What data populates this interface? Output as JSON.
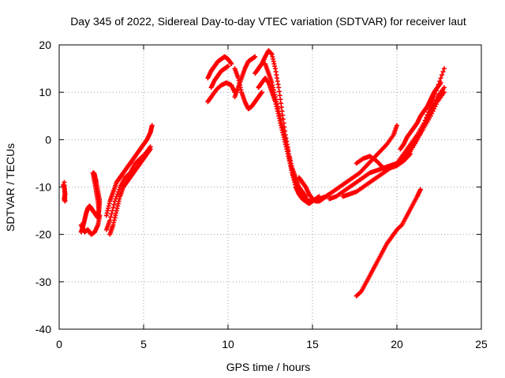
{
  "chart_data": {
    "type": "scatter",
    "title": "Day 345 of 2022, Sidereal Day-to-day VTEC variation (SDTVAR) for receiver laut",
    "xlabel": "GPS time / hours",
    "ylabel": "SDTVAR / TECUs",
    "xlim": [
      0,
      25
    ],
    "ylim": [
      -40,
      20
    ],
    "xticks": [
      0,
      5,
      10,
      15,
      20,
      25
    ],
    "yticks": [
      -40,
      -30,
      -20,
      -10,
      0,
      10,
      20
    ],
    "grid": true,
    "marker": "+",
    "color": "#ff0000",
    "series": [
      {
        "x": [
          0.25,
          0.3,
          0.35,
          0.3,
          0.35,
          0.3
        ],
        "y": [
          -9.5,
          -10,
          -11.5,
          -12.5,
          -13,
          -9
        ]
      },
      {
        "x": [
          1.3,
          1.4,
          1.5,
          1.6,
          1.7,
          1.8,
          1.9,
          2.0,
          2.1,
          2.2,
          2.3,
          2.35,
          2.4,
          2.3,
          2.2,
          2.1,
          2.05
        ],
        "y": [
          -19.5,
          -18.5,
          -17,
          -15.5,
          -14.5,
          -14,
          -14.5,
          -15,
          -15.5,
          -16,
          -16.5,
          -15,
          -13,
          -11,
          -9,
          -7.5,
          -7
        ]
      },
      {
        "x": [
          1.3,
          1.5,
          1.7,
          1.9,
          2.1,
          2.3,
          2.4
        ],
        "y": [
          -18,
          -19.5,
          -19,
          -20,
          -19.5,
          -18,
          -16
        ]
      },
      {
        "x": [
          2.0,
          2.1,
          2.2,
          2.3,
          2.35
        ],
        "y": [
          -7,
          -9,
          -11,
          -13,
          -15
        ]
      },
      {
        "x": [
          2.8,
          3.0,
          3.2,
          3.4,
          3.6,
          3.8,
          4.0,
          4.2,
          4.4,
          4.6,
          4.8,
          5.0,
          5.2,
          5.4,
          5.5
        ],
        "y": [
          -16,
          -13,
          -11,
          -9,
          -8,
          -7,
          -6,
          -5,
          -4,
          -3,
          -2,
          -1,
          0,
          1.5,
          3
        ]
      },
      {
        "x": [
          3.0,
          3.2,
          3.4,
          3.6,
          3.8,
          4.0,
          4.2,
          4.4,
          4.6,
          4.8,
          5.0,
          5.2,
          5.4
        ],
        "y": [
          -20,
          -18,
          -15,
          -12,
          -10,
          -9,
          -8,
          -7,
          -6,
          -5,
          -4,
          -3,
          -2
        ]
      },
      {
        "x": [
          2.8,
          3.0,
          3.3,
          3.6,
          3.9,
          4.2,
          4.5,
          4.8,
          5.1,
          5.4
        ],
        "y": [
          -19,
          -17,
          -13,
          -10,
          -8,
          -7,
          -5,
          -4,
          -3,
          -1.5
        ]
      },
      {
        "x": [
          8.8,
          9.0,
          9.2,
          9.4,
          9.6,
          9.8,
          10.0,
          10.2
        ],
        "y": [
          13,
          14.5,
          15.5,
          16.5,
          17,
          17.5,
          17,
          16
        ]
      },
      {
        "x": [
          8.8,
          9.0,
          9.3,
          9.6,
          9.9,
          10.2,
          10.4
        ],
        "y": [
          8,
          9,
          10.5,
          11.5,
          12,
          11.5,
          10
        ]
      },
      {
        "x": [
          9.0,
          9.2,
          9.4,
          9.6,
          9.8,
          10.0
        ],
        "y": [
          11,
          12.5,
          13.5,
          14.5,
          15,
          15.5
        ]
      },
      {
        "x": [
          10.4,
          10.6,
          10.8,
          11.0,
          11.2,
          11.4,
          11.6,
          11.8,
          12.0
        ],
        "y": [
          15,
          13,
          10,
          8,
          6.5,
          7,
          8,
          9,
          10
        ]
      },
      {
        "x": [
          10.4,
          10.6,
          10.8,
          11.0,
          11.2,
          11.4,
          11.6
        ],
        "y": [
          9,
          11,
          13,
          15,
          16.5,
          17,
          17.5
        ]
      },
      {
        "x": [
          11.6,
          11.8,
          12.0,
          12.2,
          12.4,
          12.6,
          12.8,
          13.0,
          13.2,
          13.4,
          13.6,
          13.8,
          14.0,
          14.2,
          14.4,
          14.6,
          14.8,
          15.0,
          15.2,
          15.4
        ],
        "y": [
          14,
          15,
          16,
          17.5,
          18.8,
          18,
          15,
          11,
          6,
          1,
          -3,
          -7,
          -10,
          -11.5,
          -12.5,
          -13,
          -13.5,
          -13,
          -12.5,
          -12
        ]
      },
      {
        "x": [
          11.8,
          12.0,
          12.2,
          12.4,
          12.6,
          12.8,
          13.0,
          13.2,
          13.4,
          13.6,
          13.8,
          14.0,
          14.2,
          14.4,
          14.6
        ],
        "y": [
          11,
          12,
          13,
          12,
          10,
          8,
          5,
          2,
          -1,
          -4,
          -7,
          -9,
          -10.5,
          -11,
          -12
        ]
      },
      {
        "x": [
          12.2,
          12.4,
          12.6,
          12.8,
          13.0,
          13.2,
          13.4,
          13.6,
          13.8,
          14.0,
          14.2,
          14.4,
          14.6,
          14.8,
          15.0
        ],
        "y": [
          16,
          14,
          12,
          9,
          6,
          3,
          0,
          -3,
          -6,
          -8,
          -10,
          -11,
          -12.5,
          -13,
          -13
        ]
      },
      {
        "x": [
          14.2,
          14.4,
          14.6,
          14.8,
          15.0,
          15.2,
          15.4,
          15.6,
          15.8,
          16.0
        ],
        "y": [
          -8,
          -9,
          -10,
          -11.5,
          -12.5,
          -13,
          -13,
          -12.5,
          -12,
          -11.5
        ]
      },
      {
        "x": [
          15.4,
          15.8,
          16.2,
          16.6,
          17.0,
          17.4,
          17.8,
          18.2,
          18.6,
          19.0,
          19.4,
          19.8,
          20.0
        ],
        "y": [
          -12.5,
          -12,
          -11,
          -10,
          -9,
          -8,
          -7,
          -5.5,
          -4,
          -2.5,
          -1,
          1,
          3
        ]
      },
      {
        "x": [
          16.0,
          16.4,
          16.8,
          17.2,
          17.6,
          18.0,
          18.4,
          18.8,
          19.2,
          19.6,
          20.0,
          20.4,
          20.8,
          21.2,
          21.6,
          22.0,
          22.4,
          22.8
        ],
        "y": [
          -12.5,
          -12,
          -11,
          -10,
          -9,
          -8,
          -7,
          -6.5,
          -6,
          -5.5,
          -5,
          -4,
          -2.5,
          0,
          3,
          6,
          9,
          11
        ]
      },
      {
        "x": [
          16.8,
          17.2,
          17.6,
          18.0,
          18.4,
          18.8,
          19.2,
          19.6,
          20.0,
          20.4,
          20.8,
          21.2,
          21.6,
          22.0,
          22.4,
          22.8
        ],
        "y": [
          -12,
          -11.5,
          -11,
          -10,
          -9,
          -8,
          -7,
          -6,
          -5,
          -4,
          -2,
          0,
          2.5,
          5,
          8,
          10
        ]
      },
      {
        "x": [
          17.6,
          18.0,
          18.4,
          18.8,
          19.2,
          19.6,
          20.0,
          20.4,
          20.8,
          21.2,
          21.6,
          22.0,
          22.4,
          22.8
        ],
        "y": [
          -5,
          -4,
          -3.5,
          -4.5,
          -6,
          -6,
          -5,
          -3,
          -1,
          1,
          3.5,
          7,
          11,
          15
        ]
      },
      {
        "x": [
          18.4,
          18.8,
          19.2,
          19.6,
          20.0,
          20.4,
          20.8
        ],
        "y": [
          -9,
          -8,
          -7,
          -6,
          -5.5,
          -4.5,
          -3
        ]
      },
      {
        "x": [
          20.2,
          20.4,
          20.6,
          20.8,
          21.0,
          21.2,
          21.4,
          21.6,
          21.8,
          22.0,
          22.2,
          22.4,
          22.6
        ],
        "y": [
          -2,
          -1,
          0.5,
          1.5,
          2.5,
          3.5,
          5,
          6,
          7,
          8.5,
          10,
          11,
          12
        ]
      },
      {
        "x": [
          17.6,
          17.9,
          18.2,
          18.5,
          18.8,
          19.1,
          19.4,
          19.7,
          20.0,
          20.3,
          20.6,
          20.9,
          21.2,
          21.4
        ],
        "y": [
          -33,
          -32,
          -30,
          -28,
          -26,
          -24,
          -22,
          -20.5,
          -19,
          -18,
          -16,
          -14,
          -12,
          -10.5
        ]
      }
    ]
  }
}
